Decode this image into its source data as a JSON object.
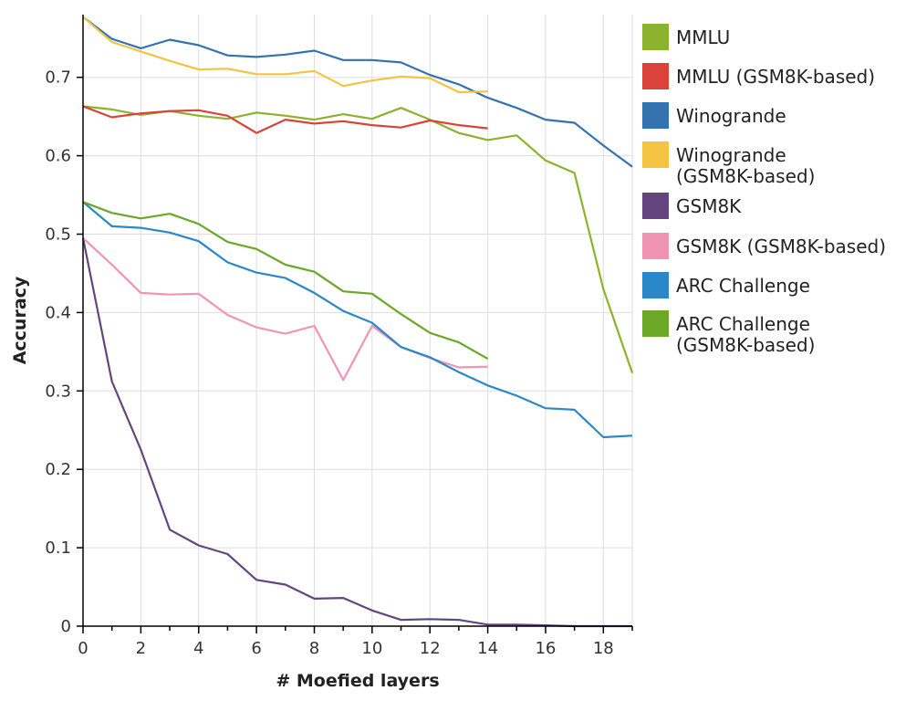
{
  "chart_data": {
    "type": "line",
    "xlabel": "# Moefied layers",
    "ylabel": "Accuracy",
    "xlim": [
      0,
      19
    ],
    "ylim": [
      0,
      0.78
    ],
    "xticks": [
      0,
      2,
      4,
      6,
      8,
      10,
      12,
      14,
      16,
      18
    ],
    "yticks": [
      0,
      0.1,
      0.2,
      0.3,
      0.4,
      0.5,
      0.6,
      0.7
    ],
    "ytick_labels": [
      "0",
      "0.1",
      "0.2",
      "0.3",
      "0.4",
      "0.5",
      "0.6",
      "0.7"
    ],
    "grid": true,
    "legend_position": "right",
    "series": [
      {
        "name": "MMLU",
        "legend_lines": [
          "MMLU"
        ],
        "color": "#8cb32d",
        "x": [
          0,
          1,
          2,
          3,
          4,
          5,
          6,
          7,
          8,
          9,
          10,
          11,
          12,
          13,
          14,
          15,
          16,
          17,
          18,
          19
        ],
        "y": [
          0.663,
          0.659,
          0.652,
          0.657,
          0.651,
          0.647,
          0.655,
          0.651,
          0.646,
          0.653,
          0.647,
          0.661,
          0.646,
          0.629,
          0.62,
          0.626,
          0.594,
          0.578,
          0.43,
          0.323
        ]
      },
      {
        "name": "MMLU (GSM8K-based)",
        "legend_lines": [
          "MMLU (GSM8K-based)"
        ],
        "color": "#d9433a",
        "x": [
          0,
          1,
          2,
          3,
          4,
          5,
          6,
          7,
          8,
          9,
          10,
          11,
          12,
          13,
          14
        ],
        "y": [
          0.663,
          0.649,
          0.654,
          0.657,
          0.658,
          0.651,
          0.629,
          0.646,
          0.641,
          0.644,
          0.639,
          0.636,
          0.645,
          0.639,
          0.635
        ]
      },
      {
        "name": "Winogrande",
        "legend_lines": [
          "Winogrande"
        ],
        "color": "#3572b0",
        "x": [
          0,
          1,
          2,
          3,
          4,
          5,
          6,
          7,
          8,
          9,
          10,
          11,
          12,
          13,
          14,
          15,
          16,
          17,
          18,
          19
        ],
        "y": [
          0.777,
          0.749,
          0.737,
          0.748,
          0.741,
          0.728,
          0.726,
          0.729,
          0.734,
          0.722,
          0.722,
          0.719,
          0.703,
          0.691,
          0.674,
          0.661,
          0.646,
          0.642,
          0.613,
          0.586
        ]
      },
      {
        "name": "Winogrande (GSM8K-based)",
        "legend_lines": [
          "Winogrande",
          "(GSM8K-based)"
        ],
        "color": "#f5c342",
        "x": [
          0,
          1,
          2,
          3,
          4,
          5,
          6,
          7,
          8,
          9,
          10,
          11,
          12,
          13,
          14
        ],
        "y": [
          0.777,
          0.745,
          0.733,
          0.721,
          0.71,
          0.711,
          0.704,
          0.704,
          0.708,
          0.689,
          0.696,
          0.701,
          0.699,
          0.681,
          0.682
        ]
      },
      {
        "name": "GSM8K",
        "legend_lines": [
          "GSM8K"
        ],
        "color": "#64457f",
        "x": [
          0,
          1,
          2,
          3,
          4,
          5,
          6,
          7,
          8,
          9,
          10,
          11,
          12,
          13,
          14,
          15,
          16,
          17,
          18,
          19
        ],
        "y": [
          0.495,
          0.312,
          0.225,
          0.123,
          0.103,
          0.092,
          0.059,
          0.053,
          0.035,
          0.036,
          0.02,
          0.008,
          0.009,
          0.008,
          0.002,
          0.002,
          0.001,
          0.0,
          0.0,
          0.0
        ]
      },
      {
        "name": "GSM8K (GSM8K-based)",
        "legend_lines": [
          "GSM8K (GSM8K-based)"
        ],
        "color": "#f194b3",
        "x": [
          0,
          1,
          2,
          3,
          4,
          5,
          6,
          7,
          8,
          9,
          10,
          11,
          12,
          13,
          14
        ],
        "y": [
          0.495,
          0.461,
          0.425,
          0.423,
          0.424,
          0.397,
          0.381,
          0.373,
          0.383,
          0.314,
          0.383,
          0.356,
          0.342,
          0.33,
          0.331
        ]
      },
      {
        "name": "ARC Challenge",
        "legend_lines": [
          "ARC Challenge"
        ],
        "color": "#2a87c8",
        "x": [
          0,
          1,
          2,
          3,
          4,
          5,
          6,
          7,
          8,
          9,
          10,
          11,
          12,
          13,
          14,
          15,
          16,
          17,
          18,
          19
        ],
        "y": [
          0.541,
          0.51,
          0.508,
          0.502,
          0.491,
          0.464,
          0.451,
          0.444,
          0.425,
          0.402,
          0.387,
          0.356,
          0.343,
          0.324,
          0.307,
          0.294,
          0.278,
          0.276,
          0.241,
          0.243
        ]
      },
      {
        "name": "ARC Challenge (GSM8K-based)",
        "legend_lines": [
          "ARC Challenge",
          "(GSM8K-based)"
        ],
        "color": "#6aa826",
        "x": [
          0,
          1,
          2,
          3,
          4,
          5,
          6,
          7,
          8,
          9,
          10,
          11,
          12,
          13,
          14
        ],
        "y": [
          0.541,
          0.527,
          0.52,
          0.526,
          0.513,
          0.49,
          0.481,
          0.461,
          0.452,
          0.427,
          0.424,
          0.398,
          0.374,
          0.362,
          0.341
        ]
      }
    ]
  }
}
